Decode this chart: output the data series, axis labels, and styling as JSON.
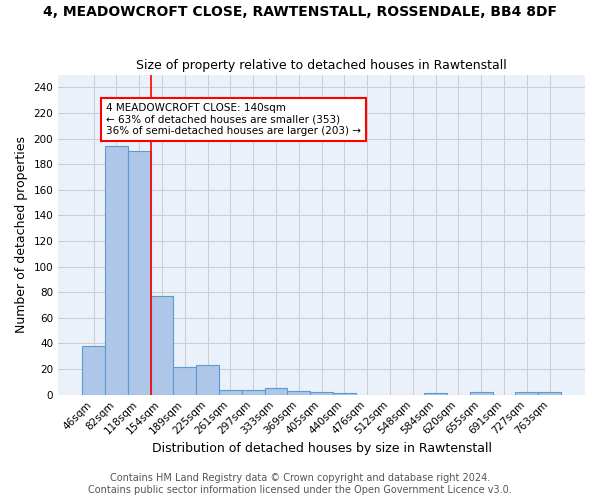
{
  "title": "4, MEADOWCROFT CLOSE, RAWTENSTALL, ROSSENDALE, BB4 8DF",
  "subtitle": "Size of property relative to detached houses in Rawtenstall",
  "xlabel": "Distribution of detached houses by size in Rawtenstall",
  "ylabel": "Number of detached properties",
  "categories": [
    "46sqm",
    "82sqm",
    "118sqm",
    "154sqm",
    "189sqm",
    "225sqm",
    "261sqm",
    "297sqm",
    "333sqm",
    "369sqm",
    "405sqm",
    "440sqm",
    "476sqm",
    "512sqm",
    "548sqm",
    "584sqm",
    "620sqm",
    "655sqm",
    "691sqm",
    "727sqm",
    "763sqm"
  ],
  "values": [
    38,
    194,
    190,
    77,
    22,
    23,
    4,
    4,
    5,
    3,
    2,
    1,
    0,
    0,
    0,
    1,
    0,
    2,
    0,
    2,
    2
  ],
  "bar_color": "#aec6e8",
  "bar_edge_color": "#5b9bd5",
  "bar_edge_width": 0.8,
  "red_line_x": 2.5,
  "annotation_text": "4 MEADOWCROFT CLOSE: 140sqm\n← 63% of detached houses are smaller (353)\n36% of semi-detached houses are larger (203) →",
  "annotation_box_edge_color": "red",
  "annotation_box_face_color": "white",
  "ylim": [
    0,
    250
  ],
  "yticks": [
    0,
    20,
    40,
    60,
    80,
    100,
    120,
    140,
    160,
    180,
    200,
    220,
    240
  ],
  "grid_color": "#cccccc",
  "background_color": "#eaf1fb",
  "footer_line1": "Contains HM Land Registry data © Crown copyright and database right 2024.",
  "footer_line2": "Contains public sector information licensed under the Open Government Licence v3.0.",
  "title_fontsize": 10,
  "subtitle_fontsize": 9,
  "xlabel_fontsize": 9,
  "ylabel_fontsize": 9,
  "tick_fontsize": 7.5,
  "footer_fontsize": 7
}
